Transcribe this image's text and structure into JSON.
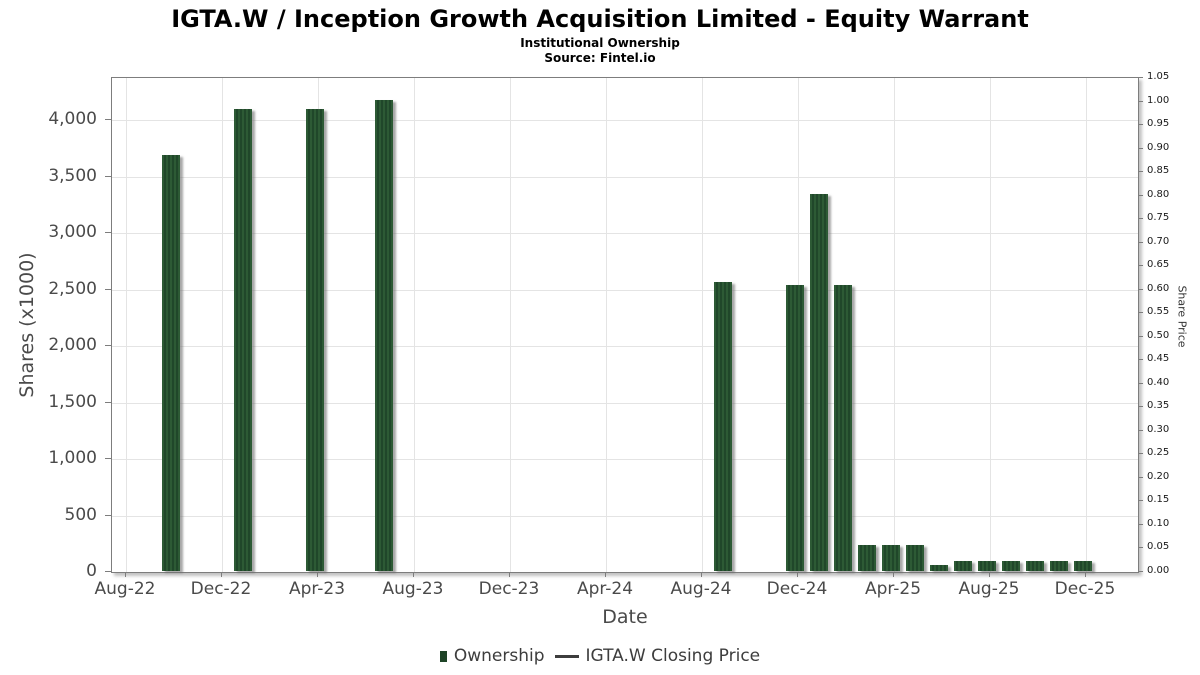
{
  "header": {
    "title": "IGTA.W / Inception Growth Acquisition Limited - Equity Warrant",
    "subtitle": "Institutional Ownership",
    "source": "Source: Fintel.io"
  },
  "legend": {
    "items": [
      {
        "label": "Ownership",
        "swatch": "green-square"
      },
      {
        "label": "IGTA.W Closing Price",
        "swatch": "line"
      }
    ]
  },
  "chart_data": {
    "type": "bar",
    "title": "IGTA.W / Inception Growth Acquisition Limited - Equity Warrant",
    "subtitle": "Institutional Ownership",
    "source": "Source: Fintel.io",
    "xlabel": "Date",
    "ylabel_left": "Shares (x1000)",
    "ylabel_right": "Share Price",
    "grid": true,
    "legend_position": "bottom",
    "x_unit": "months since Aug-2022",
    "xlim_months": [
      -0.583,
      42.167
    ],
    "ylim_left": [
      0,
      4372
    ],
    "ylim_right": [
      0,
      1.05
    ],
    "x_ticks": [
      {
        "label": "Aug-22",
        "m": 0
      },
      {
        "label": "Dec-22",
        "m": 4
      },
      {
        "label": "Apr-23",
        "m": 8
      },
      {
        "label": "Aug-23",
        "m": 12
      },
      {
        "label": "Dec-23",
        "m": 16
      },
      {
        "label": "Apr-24",
        "m": 20
      },
      {
        "label": "Aug-24",
        "m": 24
      },
      {
        "label": "Dec-24",
        "m": 28
      },
      {
        "label": "Apr-25",
        "m": 32
      },
      {
        "label": "Aug-25",
        "m": 36
      },
      {
        "label": "Dec-25",
        "m": 40
      }
    ],
    "left_ticks": [
      {
        "label": "0",
        "value": 0
      },
      {
        "label": "500",
        "value": 500
      },
      {
        "label": "1,000",
        "value": 1000
      },
      {
        "label": "1,500",
        "value": 1500
      },
      {
        "label": "2,000",
        "value": 2000
      },
      {
        "label": "2,500",
        "value": 2500
      },
      {
        "label": "3,000",
        "value": 3000
      },
      {
        "label": "3,500",
        "value": 3500
      },
      {
        "label": "4,000",
        "value": 4000
      }
    ],
    "right_ticks": [
      {
        "label": "0.00",
        "value": 0.0
      },
      {
        "label": "0.05",
        "value": 0.05
      },
      {
        "label": "0.10",
        "value": 0.1
      },
      {
        "label": "0.15",
        "value": 0.15
      },
      {
        "label": "0.20",
        "value": 0.2
      },
      {
        "label": "0.25",
        "value": 0.25
      },
      {
        "label": "0.30",
        "value": 0.3
      },
      {
        "label": "0.35",
        "value": 0.35
      },
      {
        "label": "0.40",
        "value": 0.4
      },
      {
        "label": "0.45",
        "value": 0.45
      },
      {
        "label": "0.50",
        "value": 0.5
      },
      {
        "label": "0.55",
        "value": 0.55
      },
      {
        "label": "0.60",
        "value": 0.6
      },
      {
        "label": "0.65",
        "value": 0.65
      },
      {
        "label": "0.70",
        "value": 0.7
      },
      {
        "label": "0.75",
        "value": 0.75
      },
      {
        "label": "0.80",
        "value": 0.8
      },
      {
        "label": "0.85",
        "value": 0.85
      },
      {
        "label": "0.90",
        "value": 0.9
      },
      {
        "label": "0.95",
        "value": 0.95
      },
      {
        "label": "1.00",
        "value": 1.0
      },
      {
        "label": "1.05",
        "value": 1.05
      }
    ],
    "series": [
      {
        "name": "Ownership",
        "type": "bar",
        "color_light": "#2d5a35",
        "color_dark": "#20472a",
        "points": [
          {
            "date": "Oct-22",
            "m": 1.9,
            "shares_k": 3680
          },
          {
            "date": "Jan-23",
            "m": 4.9,
            "shares_k": 4085
          },
          {
            "date": "Apr-23",
            "m": 7.9,
            "shares_k": 4085
          },
          {
            "date": "Jul-23",
            "m": 10.8,
            "shares_k": 4165
          },
          {
            "date": "Sep-24",
            "m": 24.9,
            "shares_k": 2555
          },
          {
            "date": "Dec-24",
            "m": 27.9,
            "shares_k": 2535
          },
          {
            "date": "Jan-25",
            "m": 28.9,
            "shares_k": 3335
          },
          {
            "date": "Feb-25",
            "m": 29.9,
            "shares_k": 2535
          },
          {
            "date": "Mar-25",
            "m": 30.9,
            "shares_k": 230
          },
          {
            "date": "Apr-25",
            "m": 31.9,
            "shares_k": 230
          },
          {
            "date": "May-25",
            "m": 32.9,
            "shares_k": 230
          },
          {
            "date": "Jun-25",
            "m": 33.9,
            "shares_k": 55
          },
          {
            "date": "Jul-25",
            "m": 34.9,
            "shares_k": 90
          },
          {
            "date": "Aug-25",
            "m": 35.9,
            "shares_k": 90
          },
          {
            "date": "Sep-25",
            "m": 36.9,
            "shares_k": 90
          },
          {
            "date": "Oct-25",
            "m": 37.9,
            "shares_k": 90
          },
          {
            "date": "Nov-25",
            "m": 38.9,
            "shares_k": 90
          },
          {
            "date": "Dec-25",
            "m": 39.9,
            "shares_k": 90
          }
        ]
      },
      {
        "name": "IGTA.W Closing Price",
        "type": "line",
        "points": []
      }
    ]
  }
}
